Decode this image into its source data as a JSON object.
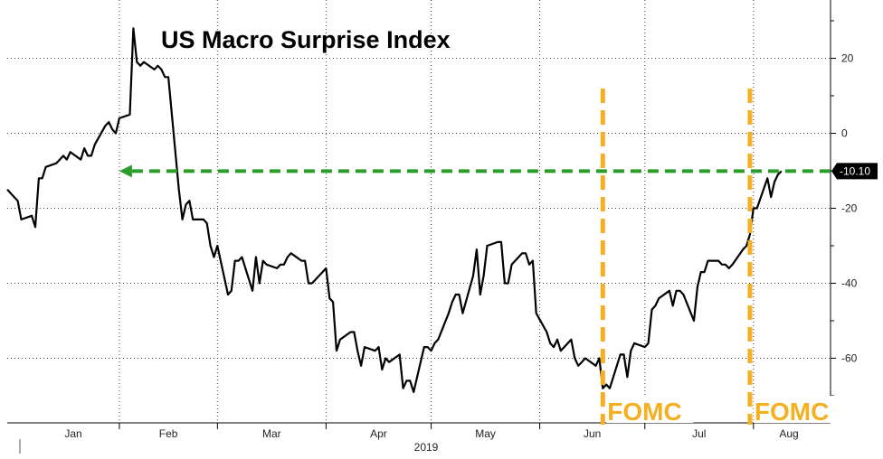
{
  "chart_data": {
    "type": "line",
    "title": "US Macro Surprise Index",
    "year_label": "2019",
    "x_tick_labels": [
      "Jan",
      "Feb",
      "Mar",
      "Apr",
      "May",
      "Jun",
      "Jul",
      "Aug"
    ],
    "y_tick_labels": [
      "20",
      "0",
      "-20",
      "-40",
      "-60"
    ],
    "y_ticks": [
      20,
      0,
      -20,
      -40,
      -60
    ],
    "ylim": [
      -78,
      35
    ],
    "grid": true,
    "last_value": -10.1,
    "last_value_label": "-10.10",
    "reference_line": {
      "value": -10.1,
      "from": "2019-02-01",
      "to": "2019-08-23",
      "style": "dashed-arrow",
      "color": "#2a9d2a"
    },
    "annotations": [
      {
        "label": "FOMC",
        "date": "2019-06-19",
        "color": "#f5b021"
      },
      {
        "label": "FOMC",
        "date": "2019-07-31",
        "color": "#f5b021"
      }
    ],
    "series": [
      {
        "color": "#000000",
        "points": [
          [
            "2018-12-31",
            -15
          ],
          [
            "2019-01-02",
            -17
          ],
          [
            "2019-01-03",
            -18
          ],
          [
            "2019-01-04",
            -23
          ],
          [
            "2019-01-07",
            -22
          ],
          [
            "2019-01-08",
            -25
          ],
          [
            "2019-01-09",
            -12
          ],
          [
            "2019-01-10",
            -12
          ],
          [
            "2019-01-11",
            -9
          ],
          [
            "2019-01-14",
            -8
          ],
          [
            "2019-01-15",
            -7
          ],
          [
            "2019-01-16",
            -6
          ],
          [
            "2019-01-17",
            -7
          ],
          [
            "2019-01-18",
            -5
          ],
          [
            "2019-01-21",
            -7
          ],
          [
            "2019-01-22",
            -4
          ],
          [
            "2019-01-23",
            -6
          ],
          [
            "2019-01-24",
            -6
          ],
          [
            "2019-01-25",
            -3
          ],
          [
            "2019-01-28",
            2
          ],
          [
            "2019-01-29",
            3
          ],
          [
            "2019-01-30",
            1
          ],
          [
            "2019-01-31",
            0
          ],
          [
            "2019-02-01",
            4
          ],
          [
            "2019-02-04",
            5
          ],
          [
            "2019-02-05",
            28
          ],
          [
            "2019-02-06",
            19
          ],
          [
            "2019-02-07",
            18
          ],
          [
            "2019-02-08",
            19
          ],
          [
            "2019-02-11",
            17
          ],
          [
            "2019-02-12",
            18
          ],
          [
            "2019-02-13",
            17
          ],
          [
            "2019-02-14",
            15
          ],
          [
            "2019-02-15",
            15
          ],
          [
            "2019-02-18",
            -15
          ],
          [
            "2019-02-19",
            -23
          ],
          [
            "2019-02-20",
            -19
          ],
          [
            "2019-02-21",
            -18
          ],
          [
            "2019-02-22",
            -23
          ],
          [
            "2019-02-25",
            -23
          ],
          [
            "2019-02-26",
            -24
          ],
          [
            "2019-02-27",
            -30
          ],
          [
            "2019-02-28",
            -33
          ],
          [
            "2019-03-01",
            -30
          ],
          [
            "2019-03-04",
            -43
          ],
          [
            "2019-03-05",
            -42
          ],
          [
            "2019-03-06",
            -34
          ],
          [
            "2019-03-07",
            -34
          ],
          [
            "2019-03-08",
            -33
          ],
          [
            "2019-03-11",
            -42
          ],
          [
            "2019-03-12",
            -33
          ],
          [
            "2019-03-13",
            -40
          ],
          [
            "2019-03-14",
            -34
          ],
          [
            "2019-03-15",
            -35
          ],
          [
            "2019-03-18",
            -36
          ],
          [
            "2019-03-19",
            -35
          ],
          [
            "2019-03-20",
            -35
          ],
          [
            "2019-03-21",
            -33
          ],
          [
            "2019-03-22",
            -32
          ],
          [
            "2019-03-25",
            -34
          ],
          [
            "2019-03-26",
            -34
          ],
          [
            "2019-03-27",
            -40
          ],
          [
            "2019-03-28",
            -40
          ],
          [
            "2019-03-29",
            -39
          ],
          [
            "2019-04-01",
            -36
          ],
          [
            "2019-04-02",
            -44
          ],
          [
            "2019-04-03",
            -45
          ],
          [
            "2019-04-04",
            -58
          ],
          [
            "2019-04-05",
            -55
          ],
          [
            "2019-04-08",
            -53
          ],
          [
            "2019-04-09",
            -53
          ],
          [
            "2019-04-10",
            -58
          ],
          [
            "2019-04-11",
            -62
          ],
          [
            "2019-04-12",
            -57
          ],
          [
            "2019-04-15",
            -58
          ],
          [
            "2019-04-16",
            -57
          ],
          [
            "2019-04-17",
            -63
          ],
          [
            "2019-04-18",
            -60
          ],
          [
            "2019-04-19",
            -61
          ],
          [
            "2019-04-22",
            -59
          ],
          [
            "2019-04-23",
            -68
          ],
          [
            "2019-04-24",
            -66
          ],
          [
            "2019-04-25",
            -66
          ],
          [
            "2019-04-26",
            -69
          ],
          [
            "2019-04-29",
            -57
          ],
          [
            "2019-04-30",
            -57
          ],
          [
            "2019-05-01",
            -58
          ],
          [
            "2019-05-02",
            -56
          ],
          [
            "2019-05-03",
            -55
          ],
          [
            "2019-05-06",
            -48
          ],
          [
            "2019-05-07",
            -45
          ],
          [
            "2019-05-08",
            -43
          ],
          [
            "2019-05-09",
            -43
          ],
          [
            "2019-05-10",
            -48
          ],
          [
            "2019-05-13",
            -38
          ],
          [
            "2019-05-14",
            -31
          ],
          [
            "2019-05-15",
            -43
          ],
          [
            "2019-05-16",
            -38
          ],
          [
            "2019-05-17",
            -30
          ],
          [
            "2019-05-20",
            -29
          ],
          [
            "2019-05-21",
            -29
          ],
          [
            "2019-05-22",
            -40
          ],
          [
            "2019-05-23",
            -40
          ],
          [
            "2019-05-24",
            -35
          ],
          [
            "2019-05-27",
            -32
          ],
          [
            "2019-05-28",
            -32
          ],
          [
            "2019-05-29",
            -35
          ],
          [
            "2019-05-30",
            -34
          ],
          [
            "2019-05-31",
            -48
          ],
          [
            "2019-06-03",
            -53
          ],
          [
            "2019-06-04",
            -56
          ],
          [
            "2019-06-05",
            -57
          ],
          [
            "2019-06-06",
            -55
          ],
          [
            "2019-06-07",
            -58
          ],
          [
            "2019-06-10",
            -55
          ],
          [
            "2019-06-11",
            -60
          ],
          [
            "2019-06-12",
            -62
          ],
          [
            "2019-06-13",
            -61
          ],
          [
            "2019-06-14",
            -60
          ],
          [
            "2019-06-17",
            -62
          ],
          [
            "2019-06-18",
            -60
          ],
          [
            "2019-06-19",
            -68
          ],
          [
            "2019-06-20",
            -67
          ],
          [
            "2019-06-21",
            -68
          ],
          [
            "2019-06-24",
            -59
          ],
          [
            "2019-06-25",
            -59
          ],
          [
            "2019-06-26",
            -65
          ],
          [
            "2019-06-27",
            -58
          ],
          [
            "2019-06-28",
            -56
          ],
          [
            "2019-07-01",
            -57
          ],
          [
            "2019-07-02",
            -56
          ],
          [
            "2019-07-03",
            -47
          ],
          [
            "2019-07-04",
            -46
          ],
          [
            "2019-07-05",
            -44
          ],
          [
            "2019-07-08",
            -42
          ],
          [
            "2019-07-09",
            -46
          ],
          [
            "2019-07-10",
            -42
          ],
          [
            "2019-07-11",
            -42
          ],
          [
            "2019-07-12",
            -43
          ],
          [
            "2019-07-15",
            -50
          ],
          [
            "2019-07-16",
            -41
          ],
          [
            "2019-07-17",
            -37
          ],
          [
            "2019-07-18",
            -37
          ],
          [
            "2019-07-19",
            -34
          ],
          [
            "2019-07-22",
            -34
          ],
          [
            "2019-07-23",
            -35
          ],
          [
            "2019-07-24",
            -35
          ],
          [
            "2019-07-25",
            -36
          ],
          [
            "2019-07-26",
            -35
          ],
          [
            "2019-07-29",
            -31
          ],
          [
            "2019-07-30",
            -30
          ],
          [
            "2019-07-31",
            -27
          ],
          [
            "2019-08-01",
            -20
          ],
          [
            "2019-08-02",
            -20
          ],
          [
            "2019-08-05",
            -12
          ],
          [
            "2019-08-06",
            -17
          ],
          [
            "2019-08-07",
            -13
          ],
          [
            "2019-08-08",
            -11
          ],
          [
            "2019-08-09",
            -10.1
          ]
        ]
      }
    ]
  }
}
